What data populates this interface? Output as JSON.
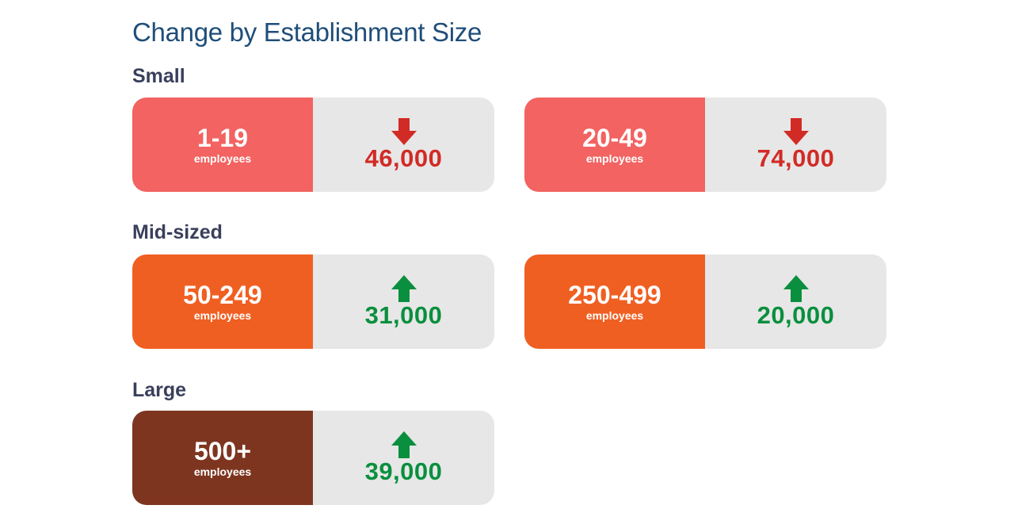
{
  "title": "Change by Establishment Size",
  "colors": {
    "title": "#1f4e79",
    "small": "#f26361",
    "mid": "#f05f22",
    "large": "#7e3520",
    "decrease": "#d22b26",
    "increase": "#0a8f3e",
    "panel": "#e7e7e7"
  },
  "groups": [
    {
      "label": "Small",
      "cards": [
        {
          "range": "1-19",
          "unit": "employees",
          "direction": "down",
          "arrow_icon": "down-arrow-icon",
          "value": "46,000"
        },
        {
          "range": "20-49",
          "unit": "employees",
          "direction": "down",
          "arrow_icon": "down-arrow-icon",
          "value": "74,000"
        }
      ]
    },
    {
      "label": "Mid-sized",
      "cards": [
        {
          "range": "50-249",
          "unit": "employees",
          "direction": "up",
          "arrow_icon": "up-arrow-icon",
          "value": "31,000"
        },
        {
          "range": "250-499",
          "unit": "employees",
          "direction": "up",
          "arrow_icon": "up-arrow-icon",
          "value": "20,000"
        }
      ]
    },
    {
      "label": "Large",
      "cards": [
        {
          "range": "500+",
          "unit": "employees",
          "direction": "up",
          "arrow_icon": "up-arrow-icon",
          "value": "39,000"
        }
      ]
    }
  ]
}
